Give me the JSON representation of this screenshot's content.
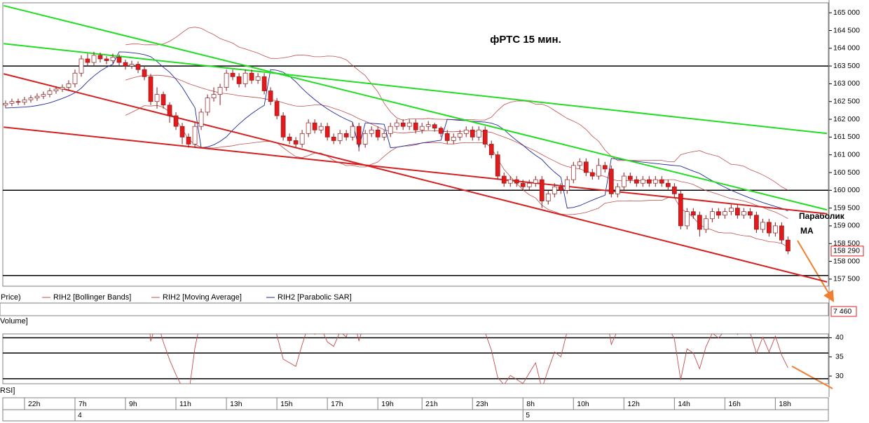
{
  "chart_data": {
    "type": "candlestick",
    "title": "фРТС   15 мин.",
    "annotations": [
      "Параболик",
      "МА"
    ],
    "legend": [
      "Price)",
      "RIH2 [Bollinger Bands]",
      "RIH2 [Moving Average]",
      "RIH2 [Parabolic SAR]"
    ],
    "panes": [
      "Volume]",
      "RSI]"
    ],
    "up_color": "#ffffff",
    "down_color": "#e31a1c",
    "outline_color": "#8b1a1a",
    "band_color": "#c0504d",
    "sar_color": "#1f2a9c",
    "candles": [
      [
        162400,
        162530,
        162320,
        162450
      ],
      [
        162450,
        162580,
        162370,
        162500
      ],
      [
        162500,
        162580,
        162400,
        162480
      ],
      [
        162480,
        162630,
        162400,
        162550
      ],
      [
        162550,
        162680,
        162470,
        162600
      ],
      [
        162600,
        162730,
        162520,
        162650
      ],
      [
        162650,
        162780,
        162570,
        162700
      ],
      [
        162700,
        162880,
        162620,
        162800
      ],
      [
        162800,
        162930,
        162720,
        162850
      ],
      [
        162850,
        162980,
        162770,
        162900
      ],
      [
        162900,
        163100,
        162820,
        163000
      ],
      [
        163000,
        163400,
        162900,
        163300
      ],
      [
        163300,
        163800,
        163200,
        163700
      ],
      [
        163700,
        163850,
        163500,
        163600
      ],
      [
        163600,
        163900,
        163520,
        163800
      ],
      [
        163800,
        163880,
        163600,
        163700
      ],
      [
        163700,
        163780,
        163550,
        163650
      ],
      [
        163650,
        163850,
        163570,
        163750
      ],
      [
        163750,
        163830,
        163520,
        163600
      ],
      [
        163600,
        163680,
        163400,
        163500
      ],
      [
        163500,
        163650,
        163420,
        163550
      ],
      [
        163550,
        163630,
        163300,
        163400
      ],
      [
        163400,
        163480,
        163100,
        163200
      ],
      [
        163200,
        163280,
        162400,
        162500
      ],
      [
        162500,
        162900,
        162300,
        162700
      ],
      [
        162700,
        162780,
        162300,
        162400
      ],
      [
        162400,
        162480,
        161900,
        162100
      ],
      [
        162100,
        162200,
        161700,
        161800
      ],
      [
        161800,
        161900,
        161300,
        161500
      ],
      [
        161500,
        161600,
        161200,
        161300
      ],
      [
        161300,
        161900,
        161200,
        161800
      ],
      [
        161800,
        162300,
        161700,
        162200
      ],
      [
        162200,
        162700,
        162100,
        162600
      ],
      [
        162600,
        162900,
        162500,
        162700
      ],
      [
        162700,
        163000,
        162400,
        162900
      ],
      [
        162900,
        163400,
        162800,
        163300
      ],
      [
        163300,
        163400,
        163100,
        163200
      ],
      [
        163200,
        163300,
        162900,
        163000
      ],
      [
        163000,
        163400,
        162900,
        163300
      ],
      [
        163300,
        163400,
        163000,
        163100
      ],
      [
        163100,
        163300,
        163000,
        163200
      ],
      [
        163200,
        163300,
        162700,
        162800
      ],
      [
        162800,
        162900,
        162400,
        162500
      ],
      [
        162500,
        162600,
        162000,
        162100
      ],
      [
        162100,
        162200,
        161400,
        161500
      ],
      [
        161500,
        161600,
        161300,
        161400
      ],
      [
        161400,
        161500,
        161200,
        161300
      ],
      [
        161300,
        161700,
        161200,
        161600
      ],
      [
        161600,
        162000,
        161500,
        161900
      ],
      [
        161900,
        162000,
        161600,
        161700
      ],
      [
        161700,
        161900,
        161600,
        161800
      ],
      [
        161800,
        161900,
        161400,
        161500
      ],
      [
        161500,
        161600,
        161300,
        161400
      ],
      [
        161400,
        161700,
        161300,
        161600
      ],
      [
        161600,
        161700,
        161400,
        161500
      ],
      [
        161500,
        161900,
        161400,
        161800
      ],
      [
        161800,
        161900,
        161100,
        161300
      ],
      [
        161300,
        161700,
        161200,
        161600
      ],
      [
        161600,
        161800,
        161500,
        161700
      ],
      [
        161700,
        161800,
        161400,
        161500
      ],
      [
        161500,
        161700,
        161400,
        161600
      ],
      [
        161600,
        161900,
        161500,
        161800
      ],
      [
        161800,
        162000,
        161700,
        161900
      ],
      [
        161900,
        162000,
        161700,
        161800
      ],
      [
        161800,
        162000,
        161700,
        161900
      ],
      [
        161900,
        162000,
        161600,
        161700
      ],
      [
        161700,
        161900,
        161600,
        161800
      ],
      [
        161800,
        161950,
        161700,
        161850
      ],
      [
        161850,
        161900,
        161650,
        161750
      ],
      [
        161750,
        161800,
        161500,
        161600
      ],
      [
        161600,
        161700,
        161300,
        161400
      ],
      [
        161400,
        161600,
        161300,
        161500
      ],
      [
        161500,
        161700,
        161400,
        161600
      ],
      [
        161600,
        161800,
        161500,
        161700
      ],
      [
        161700,
        161800,
        161400,
        161500
      ],
      [
        161500,
        161800,
        161400,
        161700
      ],
      [
        161700,
        161800,
        161200,
        161300
      ],
      [
        161300,
        161400,
        160900,
        161000
      ],
      [
        161000,
        161100,
        160300,
        160400
      ],
      [
        160400,
        160500,
        160100,
        160200
      ],
      [
        160200,
        160400,
        160100,
        160300
      ],
      [
        160300,
        160400,
        160100,
        160200
      ],
      [
        160200,
        160300,
        160000,
        160100
      ],
      [
        160100,
        160300,
        160000,
        160200
      ],
      [
        160200,
        160400,
        160100,
        160300
      ],
      [
        160300,
        160400,
        159500,
        159700
      ],
      [
        159700,
        160000,
        159600,
        159900
      ],
      [
        159900,
        160200,
        159800,
        160100
      ],
      [
        160100,
        160200,
        159900,
        160000
      ],
      [
        160000,
        160400,
        159900,
        160300
      ],
      [
        160300,
        160800,
        160200,
        160700
      ],
      [
        160700,
        160900,
        160600,
        160800
      ],
      [
        160800,
        160900,
        160400,
        160500
      ],
      [
        160500,
        160600,
        160300,
        160400
      ],
      [
        160400,
        160900,
        160300,
        160700
      ],
      [
        160700,
        160800,
        160500,
        160600
      ],
      [
        160600,
        160700,
        159800,
        159900
      ],
      [
        159900,
        160200,
        159800,
        160100
      ],
      [
        160100,
        160500,
        160000,
        160400
      ],
      [
        160400,
        160500,
        160200,
        160300
      ],
      [
        160300,
        160400,
        160100,
        160200
      ],
      [
        160200,
        160400,
        160100,
        160300
      ],
      [
        160300,
        160400,
        160100,
        160200
      ],
      [
        160200,
        160400,
        160100,
        160300
      ],
      [
        160300,
        160400,
        160100,
        160200
      ],
      [
        160200,
        160300,
        160000,
        160100
      ],
      [
        160100,
        160200,
        159800,
        159900
      ],
      [
        159900,
        160000,
        158900,
        159000
      ],
      [
        159000,
        159500,
        158900,
        159400
      ],
      [
        159400,
        159500,
        159200,
        159300
      ],
      [
        159300,
        159400,
        158700,
        158900
      ],
      [
        158900,
        159300,
        158800,
        159200
      ],
      [
        159200,
        159500,
        159100,
        159400
      ],
      [
        159400,
        159500,
        159200,
        159300
      ],
      [
        159300,
        159500,
        159200,
        159400
      ],
      [
        159400,
        159600,
        159300,
        159500
      ],
      [
        159500,
        159600,
        159200,
        159300
      ],
      [
        159300,
        159500,
        159200,
        159400
      ],
      [
        159400,
        159500,
        159200,
        159300
      ],
      [
        159300,
        159400,
        158800,
        158900
      ],
      [
        158900,
        159200,
        158800,
        159100
      ],
      [
        159100,
        159200,
        158700,
        158800
      ],
      [
        158800,
        159100,
        158700,
        159000
      ],
      [
        159000,
        159100,
        158500,
        158600
      ],
      [
        158600,
        158700,
        158200,
        158290
      ]
    ],
    "last_price": 158290,
    "last_price_label": "158 290",
    "volume_last": 7460,
    "volume_last_label": "7 460",
    "xlim": [
      -0.44,
      130.4
    ],
    "ylim": [
      157300,
      165280
    ],
    "yticks": [
      {
        "value": 157500,
        "label": "157 500"
      },
      {
        "value": 158000,
        "label": "158 000"
      },
      {
        "value": 158500,
        "label": "158 500"
      },
      {
        "value": 159000,
        "label": "159 000"
      },
      {
        "value": 159500,
        "label": "159 500"
      },
      {
        "value": 160000,
        "label": "160 000"
      },
      {
        "value": 160500,
        "label": "160 500"
      },
      {
        "value": 161000,
        "label": "161 000"
      },
      {
        "value": 161500,
        "label": "161 500"
      },
      {
        "value": 162000,
        "label": "162 000"
      },
      {
        "value": 162500,
        "label": "162 500"
      },
      {
        "value": 163000,
        "label": "163 000"
      },
      {
        "value": 163500,
        "label": "163 500"
      },
      {
        "value": 164000,
        "label": "164 000"
      },
      {
        "value": 164500,
        "label": "164 500"
      },
      {
        "value": 165000,
        "label": "165 000"
      }
    ],
    "xticks": [
      {
        "value": 3,
        "label": "22h"
      },
      {
        "value": 11,
        "label": "7h"
      },
      {
        "value": 19,
        "label": "9h"
      },
      {
        "value": 27,
        "label": "11h"
      },
      {
        "value": 35,
        "label": "13h"
      },
      {
        "value": 43,
        "label": "15h"
      },
      {
        "value": 51,
        "label": "17h"
      },
      {
        "value": 59,
        "label": "19h"
      },
      {
        "value": 66,
        "label": "21h"
      },
      {
        "value": 74,
        "label": "23h"
      },
      {
        "value": 82,
        "label": "8h"
      },
      {
        "value": 90,
        "label": "10h"
      },
      {
        "value": 98,
        "label": "12h"
      },
      {
        "value": 106,
        "label": "14h"
      },
      {
        "value": 114,
        "label": "16h"
      },
      {
        "value": 122,
        "label": "18h"
      }
    ],
    "day_ticks": [
      {
        "value": 11,
        "label": "4"
      },
      {
        "value": 82,
        "label": "5"
      }
    ],
    "levels": [
      163500,
      160000,
      157600
    ],
    "trendlines": [
      {
        "color": "#22dd22",
        "points": [
          [
            -0.3,
            165200
          ],
          [
            130.2,
            159450
          ]
        ]
      },
      {
        "color": "#22dd22",
        "points": [
          [
            -0.3,
            164130
          ],
          [
            130.2,
            161600
          ]
        ]
      },
      {
        "color": "#d42020",
        "points": [
          [
            -0.3,
            163280
          ],
          [
            130.2,
            157420
          ]
        ]
      },
      {
        "color": "#d42020",
        "points": [
          [
            -0.3,
            161780
          ],
          [
            130.2,
            159340
          ]
        ]
      }
    ],
    "rsi_ylim": [
      28,
      41
    ],
    "rsi_yticks": [
      40,
      35,
      30
    ],
    "rsi_levels": [
      40,
      36,
      29.3
    ]
  }
}
